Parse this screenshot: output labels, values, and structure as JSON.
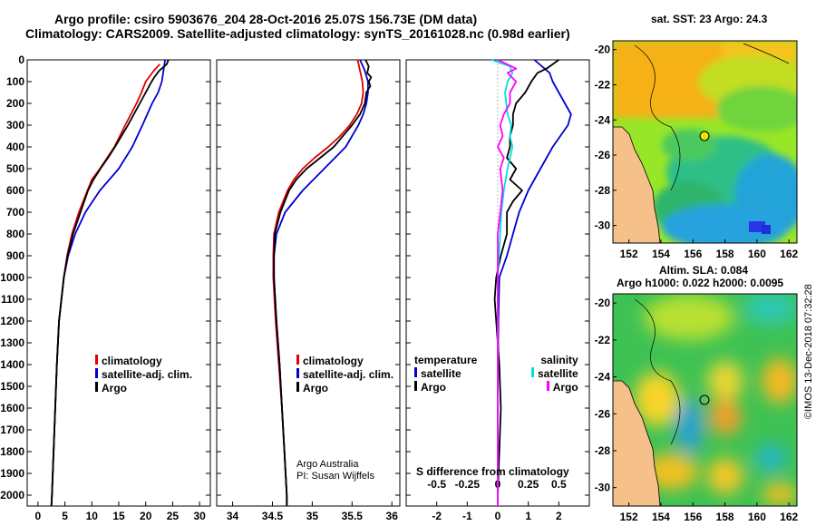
{
  "header": {
    "line1": "Argo profile: csiro 5903676_204 28-Oct-2016 25.07S 156.73E (DM data)",
    "line2": "Climatology: CARS2009. Satellite-adjusted climatology: synTS_20161028.nc (0.98d earlier)"
  },
  "depth_ticks": [
    "0",
    "100",
    "200",
    "300",
    "400",
    "500",
    "600",
    "700",
    "800",
    "900",
    "1000",
    "1100",
    "1200",
    "1300",
    "1400",
    "1500",
    "1600",
    "1700",
    "1800",
    "1900",
    "2000"
  ],
  "chart_data": [
    {
      "type": "line",
      "name": "temperature",
      "xlabel": "temperature (deg C)",
      "ylabel": "depth",
      "xlim": [
        -2,
        32
      ],
      "ylim": [
        2050,
        0
      ],
      "xticks": [
        "0",
        "5",
        "10",
        "15",
        "20",
        "25",
        "30"
      ],
      "legend": [
        "climatology",
        "satellite-adj. clim.",
        "Argo"
      ],
      "series": [
        {
          "name": "climatology",
          "color": "#e00000",
          "depth": [
            20,
            50,
            100,
            150,
            200,
            300,
            400,
            500,
            550,
            600,
            700,
            800,
            900,
            1000,
            1200,
            1400,
            1600,
            1800,
            2000,
            2050
          ],
          "values": [
            22.6,
            21.5,
            20.0,
            19.2,
            18.3,
            16.2,
            14.2,
            11.5,
            10.0,
            9.2,
            7.6,
            6.3,
            5.4,
            4.8,
            3.9,
            3.5,
            3.2,
            2.9,
            2.6,
            2.5
          ]
        },
        {
          "name": "satellite-adj. clim.",
          "color": "#0000d0",
          "depth": [
            0,
            50,
            100,
            150,
            200,
            300,
            400,
            500,
            600,
            700,
            800,
            900,
            1000,
            1200,
            1400,
            1600,
            1800,
            2000,
            2050
          ],
          "values": [
            23.6,
            23.3,
            23.0,
            22.3,
            21.2,
            19.4,
            17.5,
            15.0,
            11.5,
            8.8,
            6.9,
            5.6,
            4.8,
            3.9,
            3.5,
            3.2,
            2.9,
            2.6,
            2.5
          ]
        },
        {
          "name": "Argo",
          "color": "#000000",
          "depth": [
            0,
            20,
            50,
            80,
            100,
            150,
            200,
            300,
            400,
            450,
            500,
            550,
            600,
            700,
            800,
            900,
            1000,
            1200,
            1400,
            1600,
            1800,
            2000,
            2050
          ],
          "values": [
            24.2,
            23.9,
            22.5,
            21.6,
            21.1,
            20.0,
            18.9,
            16.7,
            14.3,
            13.0,
            11.6,
            10.3,
            9.3,
            7.9,
            6.5,
            5.5,
            4.8,
            3.9,
            3.5,
            3.2,
            2.9,
            2.6,
            2.5
          ]
        }
      ]
    },
    {
      "type": "line",
      "name": "salinity",
      "xlabel": "salinity",
      "ylabel": "depth",
      "xlim": [
        33.8,
        36.1
      ],
      "ylim": [
        2050,
        0
      ],
      "xticks": [
        "34",
        "34.5",
        "35",
        "35.5",
        "36"
      ],
      "legend": [
        "climatology",
        "satellite-adj. clim.",
        "Argo"
      ],
      "annotation": [
        "Argo Australia",
        "PI: Susan Wijffels"
      ],
      "series": [
        {
          "name": "climatology",
          "color": "#e00000",
          "depth": [
            0,
            50,
            100,
            150,
            200,
            250,
            300,
            350,
            400,
            450,
            500,
            550,
            600,
            700,
            800,
            900,
            1000,
            1200,
            1400,
            1600,
            1800,
            2000,
            2050
          ],
          "values": [
            35.57,
            35.6,
            35.63,
            35.64,
            35.62,
            35.56,
            35.47,
            35.35,
            35.2,
            35.03,
            34.88,
            34.77,
            34.69,
            34.58,
            34.52,
            34.51,
            34.51,
            34.54,
            34.58,
            34.62,
            34.65,
            34.68,
            34.68
          ]
        },
        {
          "name": "satellite-adj. clim.",
          "color": "#0000d0",
          "depth": [
            0,
            50,
            100,
            150,
            200,
            250,
            300,
            400,
            500,
            600,
            700,
            800,
            900,
            1000,
            1200,
            1400,
            1600,
            1800,
            2000,
            2050
          ],
          "values": [
            35.6,
            35.66,
            35.7,
            35.7,
            35.68,
            35.64,
            35.58,
            35.42,
            35.15,
            34.88,
            34.66,
            34.55,
            34.52,
            34.52,
            34.55,
            34.59,
            34.62,
            34.65,
            34.68,
            34.68
          ]
        },
        {
          "name": "Argo",
          "color": "#000000",
          "depth": [
            0,
            30,
            60,
            80,
            100,
            120,
            150,
            200,
            250,
            300,
            400,
            450,
            500,
            550,
            600,
            700,
            800,
            900,
            1000,
            1200,
            1400,
            1600,
            1800,
            2000,
            2050
          ],
          "values": [
            35.67,
            35.71,
            35.69,
            35.74,
            35.71,
            35.73,
            35.68,
            35.66,
            35.6,
            35.5,
            35.27,
            35.1,
            34.93,
            34.8,
            34.71,
            34.6,
            34.53,
            34.52,
            34.52,
            34.55,
            34.59,
            34.62,
            34.65,
            34.68,
            34.68
          ]
        }
      ]
    },
    {
      "type": "line",
      "name": "difference",
      "xlabel": "T difference from climatology",
      "xlabel_top": "S difference from climatology",
      "xlim": [
        -3,
        3
      ],
      "ylim": [
        2050,
        0
      ],
      "xticks": [
        "-2",
        "-1",
        "0",
        "1",
        "2"
      ],
      "xticks_top": [
        "-0.5",
        "-0.25",
        "0",
        "0.25",
        "0.5"
      ],
      "legend_temperature_title": "temperature",
      "legend_salinity_title": "salinity",
      "legend": [
        "satellite",
        "Argo",
        "satellite",
        "Argo"
      ],
      "series": [
        {
          "name": "temperature satellite",
          "color": "#0000d0",
          "depth": [
            0,
            60,
            100,
            150,
            200,
            250,
            300,
            400,
            500,
            600,
            700,
            800,
            900,
            1000,
            1200,
            1400,
            1600,
            1800,
            2000,
            2050
          ],
          "values": [
            1.2,
            1.7,
            1.8,
            2.0,
            2.2,
            2.4,
            2.3,
            1.8,
            1.4,
            1.0,
            0.7,
            0.5,
            0.3,
            0.05,
            0.02,
            0.01,
            0.0,
            0.0,
            0.0,
            0.0
          ]
        },
        {
          "name": "temperature Argo",
          "color": "#000000",
          "depth": [
            0,
            40,
            60,
            80,
            100,
            150,
            200,
            250,
            300,
            350,
            400,
            450,
            500,
            550,
            600,
            650,
            700,
            800,
            900,
            1000,
            1100,
            1200,
            1300,
            1400,
            1600,
            1800,
            2000,
            2050
          ],
          "values": [
            2.0,
            1.6,
            1.3,
            1.2,
            1.1,
            0.9,
            0.6,
            0.5,
            0.5,
            0.4,
            0.4,
            0.3,
            0.6,
            0.4,
            0.8,
            0.5,
            0.3,
            0.3,
            0.1,
            -0.05,
            -0.1,
            -0.05,
            0.0,
            0.05,
            0.1,
            0.05,
            0.0,
            0.0
          ]
        },
        {
          "name": "salinity satellite",
          "color": "#00e0e0",
          "depth": [
            0,
            30,
            60,
            100,
            150,
            200,
            250,
            300,
            350,
            400,
            500,
            600,
            700,
            800,
            900,
            1000,
            1200,
            1400,
            1600,
            1800,
            2000,
            2050
          ],
          "values": [
            -0.05,
            0.1,
            0.12,
            0.08,
            0.06,
            0.07,
            0.08,
            0.11,
            0.1,
            0.12,
            0.08,
            0.05,
            0.03,
            0.02,
            0.01,
            0.0,
            0.0,
            0.0,
            0.0,
            0.0,
            0.0,
            0.0
          ]
        },
        {
          "name": "salinity Argo",
          "color": "#ff00ff",
          "depth": [
            0,
            40,
            60,
            100,
            150,
            200,
            250,
            300,
            350,
            400,
            450,
            500,
            600,
            700,
            800,
            900,
            1000,
            1200,
            1400,
            1600,
            1800,
            2000,
            2050
          ],
          "values": [
            0.0,
            0.15,
            0.08,
            0.15,
            0.1,
            0.1,
            0.05,
            0.02,
            0.04,
            0.0,
            0.05,
            0.02,
            0.04,
            0.02,
            0.0,
            0.0,
            0.0,
            0.0,
            0.0,
            0.0,
            0.0,
            0.0,
            0.0
          ]
        }
      ]
    },
    {
      "type": "heatmap",
      "name": "sst-map",
      "title": "sat. SST: 23 Argo: 24.3",
      "xlim": [
        151,
        162.5
      ],
      "ylim": [
        -31,
        -19.5
      ],
      "xticks": [
        "152",
        "154",
        "156",
        "158",
        "160",
        "162"
      ],
      "yticks": [
        "-20",
        "-22",
        "-24",
        "-26",
        "-28",
        "-30"
      ],
      "profile_lon": 156.73,
      "profile_lat": -25.07
    },
    {
      "type": "heatmap",
      "name": "sla-map",
      "title": "Altim. SLA: 0.084",
      "subtitle": "Argo h1000: 0.022 h2000: 0.0095",
      "xlim": [
        151,
        162.5
      ],
      "ylim": [
        -31,
        -19.5
      ],
      "xticks": [
        "152",
        "154",
        "156",
        "158",
        "160",
        "162"
      ],
      "yticks": [
        "-20",
        "-22",
        "-24",
        "-26",
        "-28",
        "-30"
      ],
      "profile_lon": 156.73,
      "profile_lat": -25.07
    }
  ],
  "footer": {
    "credit": "©IMOS 13-Dec-2018 07:32:28"
  },
  "colors": {
    "land": "#f5c08a",
    "climatology": "#e00000",
    "satellite": "#0000d0",
    "argo": "#000000",
    "sal_sat": "#00e0e0",
    "sal_argo": "#ff00ff"
  }
}
